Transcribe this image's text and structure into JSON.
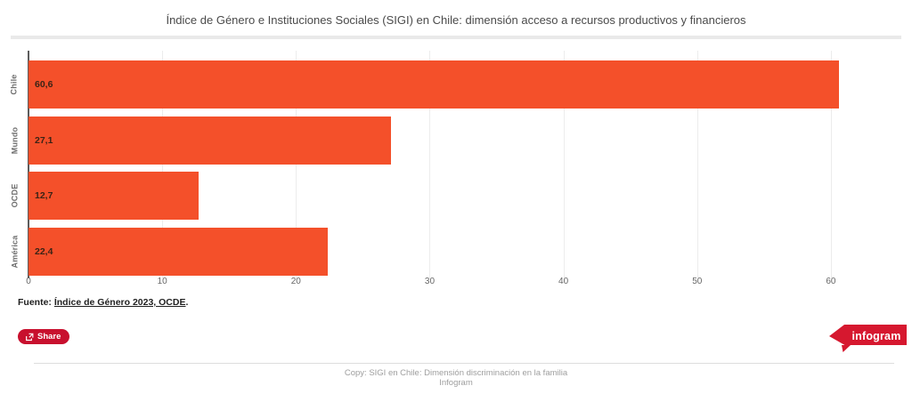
{
  "title": "Índice de Género e Instituciones Sociales (SIGI) en Chile: dimensión acceso a recursos productivos y financieros",
  "chart_data": {
    "type": "bar",
    "orientation": "horizontal",
    "title": "Índice de Género e Instituciones Sociales (SIGI) en Chile: dimensión acceso a recursos productivos y financieros",
    "categories": [
      "Chile",
      "Mundo",
      "OCDE",
      "América"
    ],
    "values": [
      60.6,
      27.1,
      12.7,
      22.4
    ],
    "value_labels": [
      "60,6",
      "27,1",
      "12,7",
      "22,4"
    ],
    "xlabel": "",
    "ylabel": "",
    "xlim": [
      0,
      65.4
    ],
    "x_ticks": [
      0,
      10,
      20,
      30,
      40,
      50,
      60
    ],
    "grid": true,
    "legend": "none"
  },
  "source": {
    "prefix": "Fuente: ",
    "link_text": "Índice de Género 2023, OCDE",
    "suffix": "."
  },
  "share": {
    "label": "Share",
    "icon": "share-export-icon"
  },
  "logo": {
    "label": "infogram"
  },
  "footer": {
    "line1": "Copy: SIGI en Chile: Dimensión discriminación en la familia",
    "line2": "Infogram"
  },
  "colors": {
    "bar": "#f4502a",
    "bar_value_label": "#3a2316",
    "share_button": "#c8102e",
    "logo_red": "#d6182f",
    "gridline": "#ececec",
    "axis_line": "#5c5c5c",
    "title_text": "#4a4a4a",
    "footer_text": "#9e9e9e"
  }
}
